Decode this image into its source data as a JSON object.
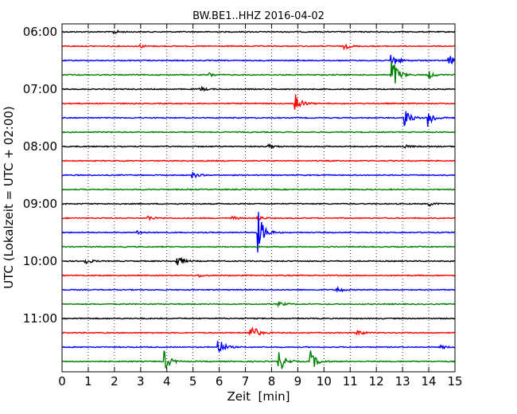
{
  "chart_data": {
    "type": "line",
    "title": "BW.BE1..HHZ 2016-04-02",
    "xlabel": "Zeit  [min]",
    "ylabel": "UTC (Lokalzeit = UTC + 02:00)",
    "xlim": [
      0,
      15
    ],
    "x_ticks": [
      "0",
      "1",
      "2",
      "3",
      "4",
      "5",
      "6",
      "7",
      "8",
      "9",
      "10",
      "11",
      "12",
      "13",
      "14",
      "15"
    ],
    "y_tick_labels": [
      "06:00",
      "07:00",
      "08:00",
      "09:00",
      "10:00",
      "11:00"
    ],
    "trace_interval_min": 15,
    "colors": [
      "#000000",
      "#ff0000",
      "#0000ff",
      "#008000"
    ],
    "grid": "vertical dotted at each minute",
    "traces": [
      {
        "start": "06:00",
        "events": [
          {
            "t": 2.0,
            "amp": 0.25
          }
        ]
      },
      {
        "start": "06:15",
        "events": [
          {
            "t": 3.0,
            "amp": 0.2
          },
          {
            "t": 10.8,
            "amp": 0.4
          }
        ]
      },
      {
        "start": "06:30",
        "events": [
          {
            "t": 12.6,
            "amp": 1.0
          },
          {
            "t": 14.8,
            "amp": 0.7
          }
        ]
      },
      {
        "start": "06:45",
        "events": [
          {
            "t": 5.6,
            "amp": 0.3
          },
          {
            "t": 12.6,
            "amp": 2.8
          },
          {
            "t": 14.0,
            "amp": 0.5
          }
        ]
      },
      {
        "start": "07:00",
        "events": [
          {
            "t": 5.3,
            "amp": 0.25
          }
        ]
      },
      {
        "start": "07:15",
        "events": [
          {
            "t": 8.9,
            "amp": 1.6
          }
        ]
      },
      {
        "start": "07:30",
        "events": [
          {
            "t": 13.1,
            "amp": 1.2
          },
          {
            "t": 14.0,
            "amp": 1.2
          }
        ]
      },
      {
        "start": "07:45",
        "events": []
      },
      {
        "start": "08:00",
        "events": [
          {
            "t": 7.9,
            "amp": 0.25
          },
          {
            "t": 13.1,
            "amp": 0.2
          }
        ]
      },
      {
        "start": "08:15",
        "events": []
      },
      {
        "start": "08:30",
        "events": [
          {
            "t": 5.0,
            "amp": 0.4
          }
        ]
      },
      {
        "start": "08:45",
        "events": []
      },
      {
        "start": "09:00",
        "events": [
          {
            "t": 14.0,
            "amp": 0.3
          }
        ]
      },
      {
        "start": "09:15",
        "events": [
          {
            "t": 3.3,
            "amp": 0.3
          },
          {
            "t": 6.5,
            "amp": 0.25
          },
          {
            "t": 7.5,
            "amp": 0.3
          }
        ]
      },
      {
        "start": "09:30",
        "events": [
          {
            "t": 7.5,
            "amp": 2.8
          },
          {
            "t": 2.9,
            "amp": 0.3
          }
        ]
      },
      {
        "start": "09:45",
        "events": []
      },
      {
        "start": "10:00",
        "events": [
          {
            "t": 0.9,
            "amp": 0.4
          },
          {
            "t": 4.4,
            "amp": 0.8
          }
        ]
      },
      {
        "start": "10:15",
        "events": [
          {
            "t": 5.2,
            "amp": 0.2
          }
        ]
      },
      {
        "start": "10:30",
        "events": [
          {
            "t": 10.5,
            "amp": 0.4
          }
        ]
      },
      {
        "start": "10:45",
        "events": [
          {
            "t": 8.3,
            "amp": 0.3
          }
        ]
      },
      {
        "start": "11:00",
        "events": []
      },
      {
        "start": "11:15",
        "events": [
          {
            "t": 7.2,
            "amp": 1.6
          },
          {
            "t": 11.3,
            "amp": 0.4
          }
        ]
      },
      {
        "start": "11:30",
        "events": [
          {
            "t": 6.0,
            "amp": 1.2
          },
          {
            "t": 14.5,
            "amp": 0.2
          }
        ]
      },
      {
        "start": "11:45",
        "events": [
          {
            "t": 3.9,
            "amp": 1.5
          },
          {
            "t": 8.3,
            "amp": 1.5
          },
          {
            "t": 9.5,
            "amp": 1.5
          }
        ]
      }
    ]
  }
}
